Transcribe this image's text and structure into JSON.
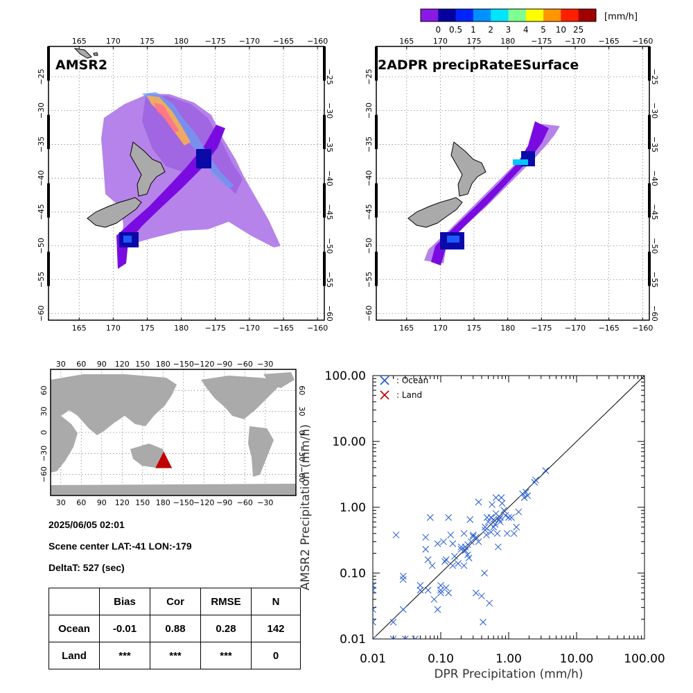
{
  "colorbar": {
    "unit": "[mm/h]",
    "colors": [
      "#8b19e6",
      "#05009e",
      "#0024ff",
      "#0090ff",
      "#00e4ff",
      "#7dff91",
      "#ffff00",
      "#ff9600",
      "#ff1e00",
      "#a00000"
    ],
    "tick_labels": [
      "0",
      "0.5",
      "1",
      "2",
      "3",
      "4",
      "5",
      "10",
      "25"
    ]
  },
  "maps": [
    {
      "title": "AMSR2",
      "lon_labels": [
        "165",
        "170",
        "175",
        "180",
        "−175",
        "−170",
        "−165",
        "−160"
      ],
      "lat_labels": [
        "−25",
        "−30",
        "−35",
        "−40",
        "−45",
        "−50",
        "−55",
        "−60"
      ]
    },
    {
      "title": "2ADPR precipRateESurface",
      "lon_labels": [
        "165",
        "170",
        "175",
        "180",
        "−175",
        "−170",
        "−165",
        "−160"
      ],
      "lat_labels": [
        "−25",
        "−30",
        "−35",
        "−40",
        "−45",
        "−50",
        "−55",
        "−60"
      ]
    }
  ],
  "world_map": {
    "lon_labels": [
      "30",
      "60",
      "90",
      "120",
      "150",
      "180",
      "−150",
      "−120",
      "−90",
      "−60",
      "−30"
    ],
    "lat_labels": [
      "60",
      "30",
      "0",
      "−30",
      "−60"
    ],
    "marker": {
      "lon": -179,
      "lat": -41
    }
  },
  "info": {
    "datetime": "2025/06/05 02:01",
    "scene_center": "Scene center LAT:-41   LON:-179",
    "delta": "DeltaT:  527 (sec)"
  },
  "stats": {
    "headers": [
      "",
      "Bias",
      "Cor",
      "RMSE",
      "N"
    ],
    "rows": [
      [
        "Ocean",
        "-0.01",
        "0.88",
        "0.28",
        "142"
      ],
      [
        "Land",
        "***",
        "***",
        "***",
        "0"
      ]
    ]
  },
  "chart_data": {
    "type": "scatter",
    "xlabel": "DPR Precipitation (mm/h)",
    "ylabel": "AMSR2 Precipitation (mm/h)",
    "xscale": "log",
    "yscale": "log",
    "xlim": [
      0.01,
      100
    ],
    "ylim": [
      0.01,
      100
    ],
    "x_tick_labels": [
      "0.01",
      "0.10",
      "1.00",
      "10.00",
      "100.00"
    ],
    "y_tick_labels": [
      "0.01",
      "0.10",
      "1.00",
      "10.00",
      "100.00"
    ],
    "legend": {
      "placement": "top-left",
      "entries": [
        ": Ocean",
        ": Land"
      ],
      "colors": [
        "#1f57d6",
        "#c00000"
      ]
    },
    "reference_line": "1:1",
    "series": [
      {
        "name": ": Ocean",
        "points": [
          [
            0.01,
            0.01
          ],
          [
            0.01,
            0.018
          ],
          [
            0.01,
            0.028
          ],
          [
            0.01,
            0.055
          ],
          [
            0.01,
            0.065
          ],
          [
            0.02,
            0.01
          ],
          [
            0.02,
            0.018
          ],
          [
            0.022,
            0.38
          ],
          [
            0.028,
            0.08
          ],
          [
            0.028,
            0.09
          ],
          [
            0.028,
            0.028
          ],
          [
            0.03,
            0.01
          ],
          [
            0.042,
            0.01
          ],
          [
            0.05,
            0.065
          ],
          [
            0.05,
            0.055
          ],
          [
            0.06,
            0.35
          ],
          [
            0.06,
            0.23
          ],
          [
            0.065,
            0.16
          ],
          [
            0.065,
            0.055
          ],
          [
            0.07,
            0.7
          ],
          [
            0.075,
            0.13
          ],
          [
            0.08,
            0.04
          ],
          [
            0.09,
            0.28
          ],
          [
            0.09,
            0.028
          ],
          [
            0.1,
            0.065
          ],
          [
            0.1,
            0.05
          ],
          [
            0.1,
            0.055
          ],
          [
            0.11,
            0.3
          ],
          [
            0.115,
            0.15
          ],
          [
            0.12,
            0.16
          ],
          [
            0.12,
            0.06
          ],
          [
            0.13,
            0.7
          ],
          [
            0.13,
            0.05
          ],
          [
            0.14,
            0.38
          ],
          [
            0.15,
            0.28
          ],
          [
            0.15,
            0.13
          ],
          [
            0.16,
            0.18
          ],
          [
            0.18,
            0.14
          ],
          [
            0.2,
            0.25
          ],
          [
            0.2,
            0.23
          ],
          [
            0.22,
            0.4
          ],
          [
            0.22,
            0.13
          ],
          [
            0.23,
            0.25
          ],
          [
            0.23,
            0.22
          ],
          [
            0.25,
            0.27
          ],
          [
            0.25,
            0.19
          ],
          [
            0.26,
            0.17
          ],
          [
            0.27,
            0.65
          ],
          [
            0.28,
            0.3
          ],
          [
            0.3,
            0.38
          ],
          [
            0.3,
            0.36
          ],
          [
            0.33,
            0.35
          ],
          [
            0.33,
            0.05
          ],
          [
            0.36,
            1.2
          ],
          [
            0.36,
            0.3
          ],
          [
            0.4,
            0.045
          ],
          [
            0.42,
            0.018
          ],
          [
            0.44,
            0.1
          ],
          [
            0.45,
            0.5
          ],
          [
            0.45,
            0.45
          ],
          [
            0.47,
            0.38
          ],
          [
            0.48,
            0.7
          ],
          [
            0.5,
            0.6
          ],
          [
            0.52,
            0.035
          ],
          [
            0.55,
            0.42
          ],
          [
            0.55,
            0.7
          ],
          [
            0.57,
            1.1
          ],
          [
            0.6,
            0.5
          ],
          [
            0.6,
            0.65
          ],
          [
            0.63,
            0.55
          ],
          [
            0.65,
            0.8
          ],
          [
            0.65,
            1.4
          ],
          [
            0.68,
            0.4
          ],
          [
            0.7,
            0.25
          ],
          [
            0.72,
            0.65
          ],
          [
            0.75,
            0.6
          ],
          [
            0.75,
            0.7
          ],
          [
            0.78,
            1.4
          ],
          [
            0.8,
            1.15
          ],
          [
            0.85,
            0.9
          ],
          [
            0.9,
            0.75
          ],
          [
            0.95,
            0.4
          ],
          [
            1.0,
            0.7
          ],
          [
            1.1,
            0.7
          ],
          [
            1.2,
            0.4
          ],
          [
            1.3,
            0.5
          ],
          [
            1.4,
            0.85
          ],
          [
            1.6,
            1.6
          ],
          [
            1.7,
            1.4
          ],
          [
            1.8,
            1.7
          ],
          [
            1.9,
            1.5
          ],
          [
            2.4,
            2.4
          ],
          [
            2.5,
            2.6
          ],
          [
            3.5,
            3.6
          ]
        ]
      },
      {
        "name": ": Land",
        "points": []
      }
    ]
  }
}
